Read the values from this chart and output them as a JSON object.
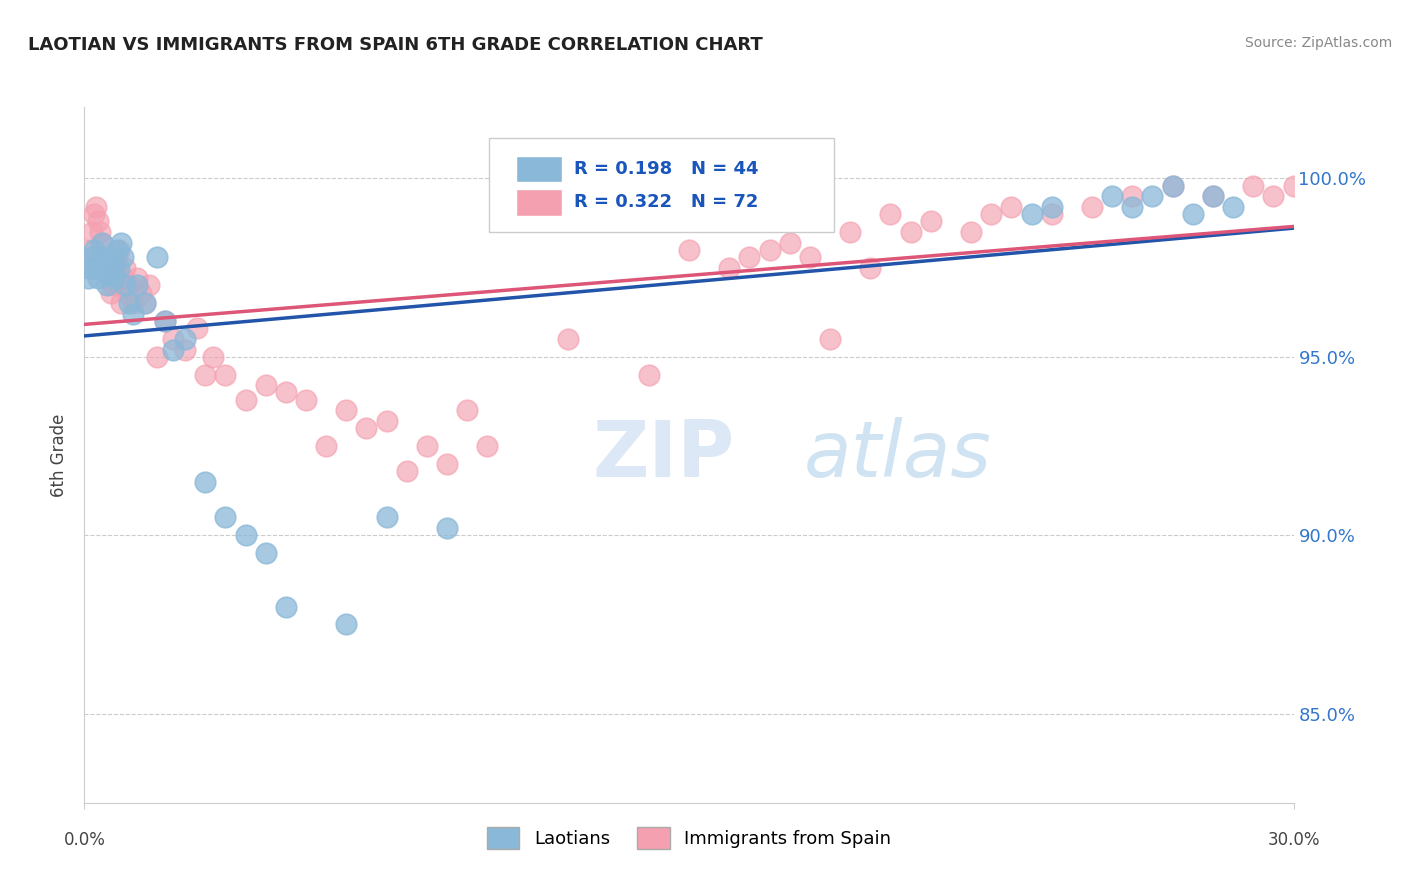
{
  "title": "LAOTIAN VS IMMIGRANTS FROM SPAIN 6TH GRADE CORRELATION CHART",
  "ylabel": "6th Grade",
  "source": "Source: ZipAtlas.com",
  "r_blue": 0.198,
  "n_blue": 44,
  "r_pink": 0.322,
  "n_pink": 72,
  "legend_label_blue": "Laotians",
  "legend_label_pink": "Immigrants from Spain",
  "xlim": [
    0.0,
    30.0
  ],
  "ylim": [
    82.5,
    102.0
  ],
  "yticks": [
    85.0,
    90.0,
    95.0,
    100.0
  ],
  "ytick_labels": [
    "85.0%",
    "90.0%",
    "95.0%",
    "100.0%"
  ],
  "blue_color": "#8ab8d8",
  "pink_color": "#f4a0b0",
  "blue_line_color": "#2255aa",
  "pink_line_color": "#dd5577",
  "background_color": "#ffffff",
  "watermark_zip": "ZIP",
  "watermark_atlas": "atlas",
  "blue_x": [
    0.1,
    0.15,
    0.2,
    0.25,
    0.3,
    0.35,
    0.4,
    0.45,
    0.5,
    0.55,
    0.6,
    0.65,
    0.7,
    0.75,
    0.8,
    0.85,
    0.9,
    0.95,
    1.0,
    1.1,
    1.2,
    1.3,
    1.5,
    1.8,
    2.0,
    2.2,
    2.5,
    3.0,
    3.5,
    4.0,
    4.5,
    5.0,
    6.5,
    7.5,
    9.0,
    23.5,
    24.0,
    25.5,
    26.0,
    26.5,
    27.0,
    27.5,
    28.0,
    28.5
  ],
  "blue_y": [
    97.2,
    97.5,
    97.8,
    98.0,
    97.5,
    97.2,
    97.8,
    98.2,
    97.5,
    97.0,
    97.3,
    97.8,
    97.5,
    97.2,
    98.0,
    97.5,
    98.2,
    97.8,
    97.0,
    96.5,
    96.2,
    97.0,
    96.5,
    97.8,
    96.0,
    95.2,
    95.5,
    91.5,
    90.5,
    90.0,
    89.5,
    88.0,
    87.5,
    90.5,
    90.2,
    99.0,
    99.2,
    99.5,
    99.2,
    99.5,
    99.8,
    99.0,
    99.5,
    99.2
  ],
  "pink_x": [
    0.1,
    0.15,
    0.2,
    0.25,
    0.3,
    0.35,
    0.4,
    0.45,
    0.5,
    0.55,
    0.6,
    0.65,
    0.7,
    0.75,
    0.8,
    0.85,
    0.9,
    0.95,
    1.0,
    1.05,
    1.1,
    1.2,
    1.3,
    1.4,
    1.5,
    1.6,
    1.8,
    2.0,
    2.2,
    2.5,
    2.8,
    3.0,
    3.2,
    3.5,
    4.0,
    4.5,
    5.0,
    5.5,
    6.0,
    6.5,
    7.0,
    7.5,
    8.0,
    8.5,
    9.0,
    9.5,
    10.0,
    12.0,
    14.0,
    16.0,
    17.0,
    18.0,
    18.5,
    19.5,
    20.0,
    20.5,
    21.0,
    22.0,
    23.0,
    24.0,
    25.0,
    26.0,
    27.0,
    28.0,
    29.0,
    29.5,
    30.0,
    15.0,
    16.5,
    17.5,
    19.0,
    22.5
  ],
  "pink_y": [
    97.5,
    98.0,
    98.5,
    99.0,
    99.2,
    98.8,
    98.5,
    98.2,
    97.8,
    97.5,
    97.2,
    96.8,
    97.0,
    97.5,
    97.8,
    98.0,
    96.5,
    97.2,
    97.5,
    96.8,
    97.0,
    96.5,
    97.2,
    96.8,
    96.5,
    97.0,
    95.0,
    96.0,
    95.5,
    95.2,
    95.8,
    94.5,
    95.0,
    94.5,
    93.8,
    94.2,
    94.0,
    93.8,
    92.5,
    93.5,
    93.0,
    93.2,
    91.8,
    92.5,
    92.0,
    93.5,
    92.5,
    95.5,
    94.5,
    97.5,
    98.0,
    97.8,
    95.5,
    97.5,
    99.0,
    98.5,
    98.8,
    98.5,
    99.2,
    99.0,
    99.2,
    99.5,
    99.8,
    99.5,
    99.8,
    99.5,
    99.8,
    98.0,
    97.8,
    98.2,
    98.5,
    99.0
  ]
}
